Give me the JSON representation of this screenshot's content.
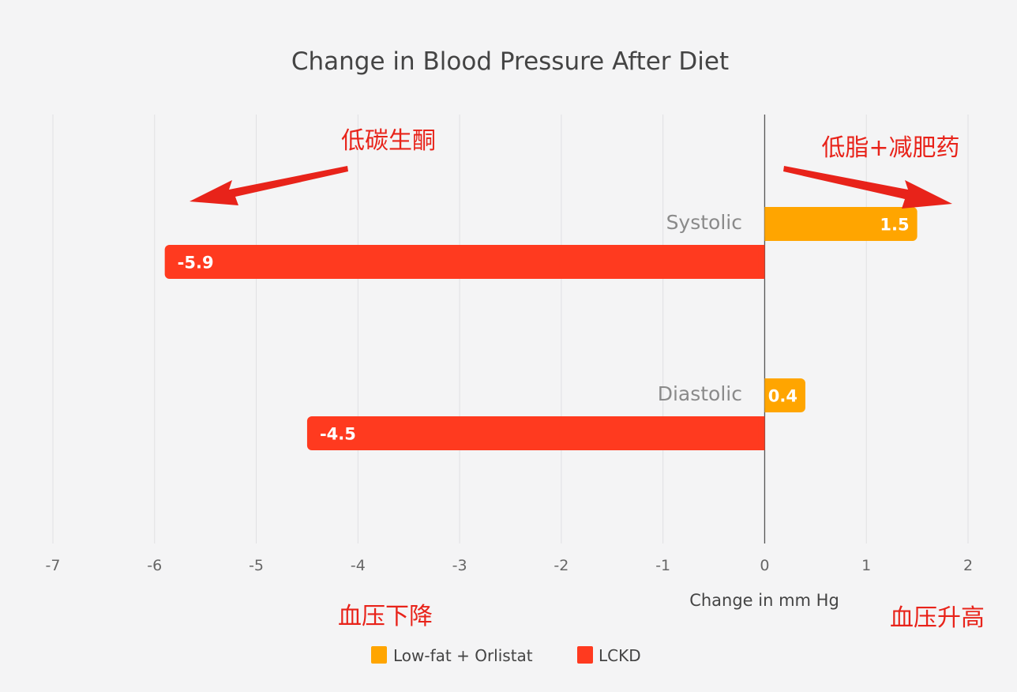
{
  "chart_data": {
    "type": "bar",
    "orientation": "horizontal",
    "title": "Change in Blood Pressure After Diet",
    "xlabel": "Change in mm Hg",
    "ylabel": "",
    "categories": [
      "Systolic",
      "Diastolic"
    ],
    "series": [
      {
        "name": "Low-fat + Orlistat",
        "color": "#ffa500",
        "values": [
          1.5,
          0.4
        ],
        "labels": [
          "1.5",
          "0.4"
        ]
      },
      {
        "name": "LCKD",
        "color": "#ff3a1f",
        "values": [
          -5.9,
          -4.5
        ],
        "labels": [
          "-5.9",
          "-4.5"
        ]
      }
    ],
    "xlim": [
      -7,
      2
    ],
    "xticks": [
      "-7",
      "-6",
      "-5",
      "-4",
      "-3",
      "-2",
      "-1",
      "0",
      "1",
      "2"
    ],
    "grid": true,
    "legend_position": "bottom"
  },
  "annotations": {
    "left_top": "低碳生酮",
    "right_top": "低脂+减肥药",
    "left_bottom": "血压下降",
    "right_bottom": "血压升高",
    "color": "#e8231a"
  }
}
